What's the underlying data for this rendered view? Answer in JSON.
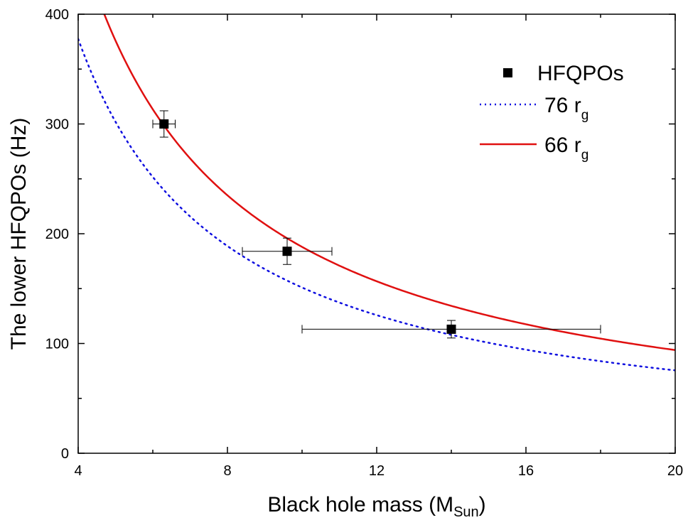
{
  "chart_data": {
    "type": "scatter",
    "xlabel": {
      "main": "Black hole mass (M",
      "sub": "Sun",
      "close": ")"
    },
    "ylabel": "The lower HFQPOs (Hz)",
    "xlim": [
      4,
      20
    ],
    "ylim": [
      0,
      400
    ],
    "xticks": [
      4,
      8,
      12,
      16,
      20
    ],
    "yticks": [
      0,
      100,
      200,
      300,
      400
    ],
    "xtick_labels": [
      "4",
      "8",
      "12",
      "16",
      "20"
    ],
    "ytick_labels": [
      "0",
      "100",
      "200",
      "300",
      "400"
    ],
    "legend_position": "top-right",
    "colors": {
      "points": "#000000",
      "dotted": "#1010e0",
      "solid": "#e01010"
    },
    "points": {
      "legend": "HFQPOs",
      "data": [
        {
          "x": 6.3,
          "y": 300,
          "xerr": [
            0.3,
            0.3
          ],
          "yerr": [
            12,
            12
          ]
        },
        {
          "x": 9.6,
          "y": 184,
          "xerr": [
            1.2,
            1.2
          ],
          "yerr": [
            12,
            12
          ]
        },
        {
          "x": 14.0,
          "y": 113,
          "xerr": [
            4.0,
            4.0
          ],
          "yerr": [
            8,
            8
          ]
        }
      ]
    },
    "curves": [
      {
        "legend_main": "76 r",
        "legend_sub": "g",
        "style": "dotted",
        "k": 1510
      },
      {
        "legend_main": "66 r",
        "legend_sub": "g",
        "style": "solid",
        "k": 1880
      }
    ]
  }
}
